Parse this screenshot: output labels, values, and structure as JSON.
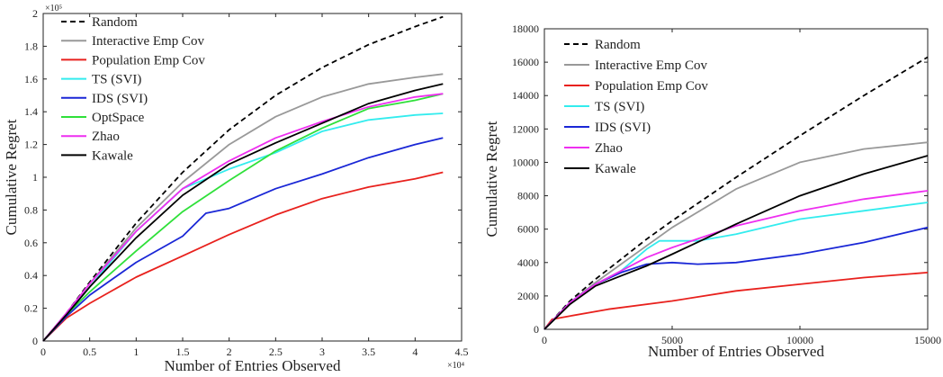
{
  "chart_data": [
    {
      "type": "line",
      "xlabel": "Number of Entries Observed",
      "ylabel": "Cumulative Regret",
      "x_multiplier_label": "×10⁴",
      "y_multiplier_label": "×10⁵",
      "xlim": [
        0,
        4.5
      ],
      "ylim": [
        0,
        2
      ],
      "xticks": [
        0,
        0.5,
        1,
        1.5,
        2,
        2.5,
        3,
        3.5,
        4,
        4.5
      ],
      "xtick_labels": [
        "0",
        "0.5",
        "1",
        "1.5",
        "2",
        "2.5",
        "3",
        "3.5",
        "4",
        "4.5"
      ],
      "yticks": [
        0,
        0.2,
        0.4,
        0.6,
        0.8,
        1,
        1.2,
        1.4,
        1.6,
        1.8,
        2
      ],
      "ytick_labels": [
        "0",
        "0.2",
        "0.4",
        "0.6",
        "0.8",
        "1",
        "1.2",
        "1.4",
        "1.6",
        "1.8",
        "2"
      ],
      "grid": false,
      "legend_position": "top-left",
      "series": [
        {
          "name": "Random",
          "color": "#000000",
          "dash": true,
          "points": [
            [
              0,
              0
            ],
            [
              0.25,
              0.17
            ],
            [
              0.5,
              0.36
            ],
            [
              1,
              0.72
            ],
            [
              1.5,
              1.03
            ],
            [
              2,
              1.29
            ],
            [
              2.5,
              1.5
            ],
            [
              3,
              1.67
            ],
            [
              3.5,
              1.81
            ],
            [
              4,
              1.92
            ],
            [
              4.3,
              1.98
            ]
          ]
        },
        {
          "name": "Interactive Emp Cov",
          "color": "#999999",
          "points": [
            [
              0,
              0
            ],
            [
              0.25,
              0.17
            ],
            [
              0.5,
              0.35
            ],
            [
              1,
              0.69
            ],
            [
              1.5,
              0.97
            ],
            [
              2,
              1.2
            ],
            [
              2.5,
              1.37
            ],
            [
              3,
              1.49
            ],
            [
              3.5,
              1.57
            ],
            [
              4,
              1.61
            ],
            [
              4.3,
              1.63
            ]
          ]
        },
        {
          "name": "Population Emp Cov",
          "color": "#e8211d",
          "points": [
            [
              0,
              0
            ],
            [
              0.25,
              0.14
            ],
            [
              0.5,
              0.23
            ],
            [
              1,
              0.39
            ],
            [
              1.5,
              0.52
            ],
            [
              2,
              0.65
            ],
            [
              2.5,
              0.77
            ],
            [
              3,
              0.87
            ],
            [
              3.5,
              0.94
            ],
            [
              4,
              0.99
            ],
            [
              4.3,
              1.03
            ]
          ]
        },
        {
          "name": "TS (SVI)",
          "color": "#33ecee",
          "points": [
            [
              0,
              0
            ],
            [
              0.25,
              0.16
            ],
            [
              0.5,
              0.33
            ],
            [
              1,
              0.67
            ],
            [
              1.5,
              0.93
            ],
            [
              2,
              1.05
            ],
            [
              2.5,
              1.15
            ],
            [
              3,
              1.28
            ],
            [
              3.5,
              1.35
            ],
            [
              4,
              1.38
            ],
            [
              4.3,
              1.39
            ]
          ]
        },
        {
          "name": "IDS (SVI)",
          "color": "#1a27d6",
          "points": [
            [
              0,
              0
            ],
            [
              0.25,
              0.15
            ],
            [
              0.5,
              0.28
            ],
            [
              1,
              0.48
            ],
            [
              1.5,
              0.64
            ],
            [
              1.75,
              0.78
            ],
            [
              2,
              0.81
            ],
            [
              2.5,
              0.93
            ],
            [
              3,
              1.02
            ],
            [
              3.5,
              1.12
            ],
            [
              4,
              1.2
            ],
            [
              4.3,
              1.24
            ]
          ]
        },
        {
          "name": "OptSpace",
          "color": "#2fe03a",
          "points": [
            [
              0,
              0
            ],
            [
              0.25,
              0.16
            ],
            [
              0.5,
              0.3
            ],
            [
              1,
              0.55
            ],
            [
              1.5,
              0.79
            ],
            [
              2,
              0.98
            ],
            [
              2.5,
              1.16
            ],
            [
              3,
              1.3
            ],
            [
              3.5,
              1.42
            ],
            [
              4,
              1.47
            ],
            [
              4.3,
              1.51
            ]
          ]
        },
        {
          "name": "Zhao",
          "color": "#ee2ff0",
          "points": [
            [
              0,
              0
            ],
            [
              0.25,
              0.17
            ],
            [
              0.5,
              0.35
            ],
            [
              1,
              0.67
            ],
            [
              1.5,
              0.93
            ],
            [
              2,
              1.1
            ],
            [
              2.5,
              1.24
            ],
            [
              3,
              1.34
            ],
            [
              3.5,
              1.43
            ],
            [
              4,
              1.49
            ],
            [
              4.3,
              1.51
            ]
          ]
        },
        {
          "name": "Kawale",
          "color": "#000000",
          "points": [
            [
              0,
              0
            ],
            [
              0.25,
              0.16
            ],
            [
              0.5,
              0.33
            ],
            [
              1,
              0.63
            ],
            [
              1.5,
              0.89
            ],
            [
              2,
              1.08
            ],
            [
              2.5,
              1.21
            ],
            [
              3,
              1.33
            ],
            [
              3.5,
              1.45
            ],
            [
              4,
              1.53
            ],
            [
              4.3,
              1.57
            ]
          ]
        }
      ]
    },
    {
      "type": "line",
      "xlabel": "Number of Entries Observed",
      "ylabel": "Cumulative Regret",
      "xlim": [
        0,
        15000
      ],
      "ylim": [
        0,
        18000
      ],
      "xticks": [
        0,
        5000,
        10000,
        15000
      ],
      "xtick_labels": [
        "0",
        "5000",
        "10000",
        "15000"
      ],
      "yticks": [
        0,
        2000,
        4000,
        6000,
        8000,
        10000,
        12000,
        14000,
        16000,
        18000
      ],
      "ytick_labels": [
        "0",
        "2000",
        "4000",
        "6000",
        "8000",
        "10000",
        "12000",
        "14000",
        "16000",
        "18000"
      ],
      "grid": false,
      "legend_position": "top-left",
      "series": [
        {
          "name": "Random",
          "color": "#000000",
          "dash": true,
          "points": [
            [
              0,
              0
            ],
            [
              1000,
              1700
            ],
            [
              2000,
              3000
            ],
            [
              3000,
              4200
            ],
            [
              4000,
              5400
            ],
            [
              5000,
              6500
            ],
            [
              7500,
              9100
            ],
            [
              10000,
              11600
            ],
            [
              12500,
              14000
            ],
            [
              15000,
              16300
            ]
          ]
        },
        {
          "name": "Interactive Emp Cov",
          "color": "#999999",
          "points": [
            [
              0,
              0
            ],
            [
              1000,
              1600
            ],
            [
              2000,
              2800
            ],
            [
              3000,
              3900
            ],
            [
              4000,
              5000
            ],
            [
              5000,
              6100
            ],
            [
              7500,
              8400
            ],
            [
              10000,
              10000
            ],
            [
              12500,
              10800
            ],
            [
              15000,
              11200
            ]
          ]
        },
        {
          "name": "Population Emp Cov",
          "color": "#e8211d",
          "points": [
            [
              0,
              0
            ],
            [
              300,
              600
            ],
            [
              1000,
              800
            ],
            [
              2500,
              1200
            ],
            [
              5000,
              1700
            ],
            [
              7500,
              2300
            ],
            [
              10000,
              2700
            ],
            [
              12500,
              3100
            ],
            [
              15000,
              3400
            ]
          ]
        },
        {
          "name": "TS (SVI)",
          "color": "#33ecee",
          "points": [
            [
              0,
              0
            ],
            [
              1000,
              1600
            ],
            [
              2000,
              2700
            ],
            [
              3000,
              3500
            ],
            [
              4000,
              4800
            ],
            [
              4500,
              5300
            ],
            [
              6000,
              5300
            ],
            [
              7500,
              5700
            ],
            [
              10000,
              6600
            ],
            [
              12500,
              7100
            ],
            [
              15000,
              7600
            ]
          ]
        },
        {
          "name": "IDS (SVI)",
          "color": "#1a27d6",
          "points": [
            [
              0,
              0
            ],
            [
              1000,
              1600
            ],
            [
              2000,
              2700
            ],
            [
              3000,
              3400
            ],
            [
              4000,
              3900
            ],
            [
              5000,
              4000
            ],
            [
              6000,
              3900
            ],
            [
              7500,
              4000
            ],
            [
              10000,
              4500
            ],
            [
              12500,
              5200
            ],
            [
              15000,
              6100
            ]
          ]
        },
        {
          "name": "Zhao",
          "color": "#ee2ff0",
          "points": [
            [
              0,
              0
            ],
            [
              1000,
              1600
            ],
            [
              2000,
              2700
            ],
            [
              3000,
              3500
            ],
            [
              4000,
              4300
            ],
            [
              5000,
              4900
            ],
            [
              7500,
              6200
            ],
            [
              10000,
              7100
            ],
            [
              12500,
              7800
            ],
            [
              15000,
              8300
            ]
          ]
        },
        {
          "name": "Kawale",
          "color": "#000000",
          "points": [
            [
              0,
              0
            ],
            [
              1000,
              1500
            ],
            [
              2000,
              2600
            ],
            [
              3000,
              3200
            ],
            [
              4000,
              3800
            ],
            [
              5000,
              4500
            ],
            [
              7500,
              6300
            ],
            [
              10000,
              8000
            ],
            [
              12500,
              9300
            ],
            [
              15000,
              10400
            ]
          ]
        }
      ]
    }
  ]
}
